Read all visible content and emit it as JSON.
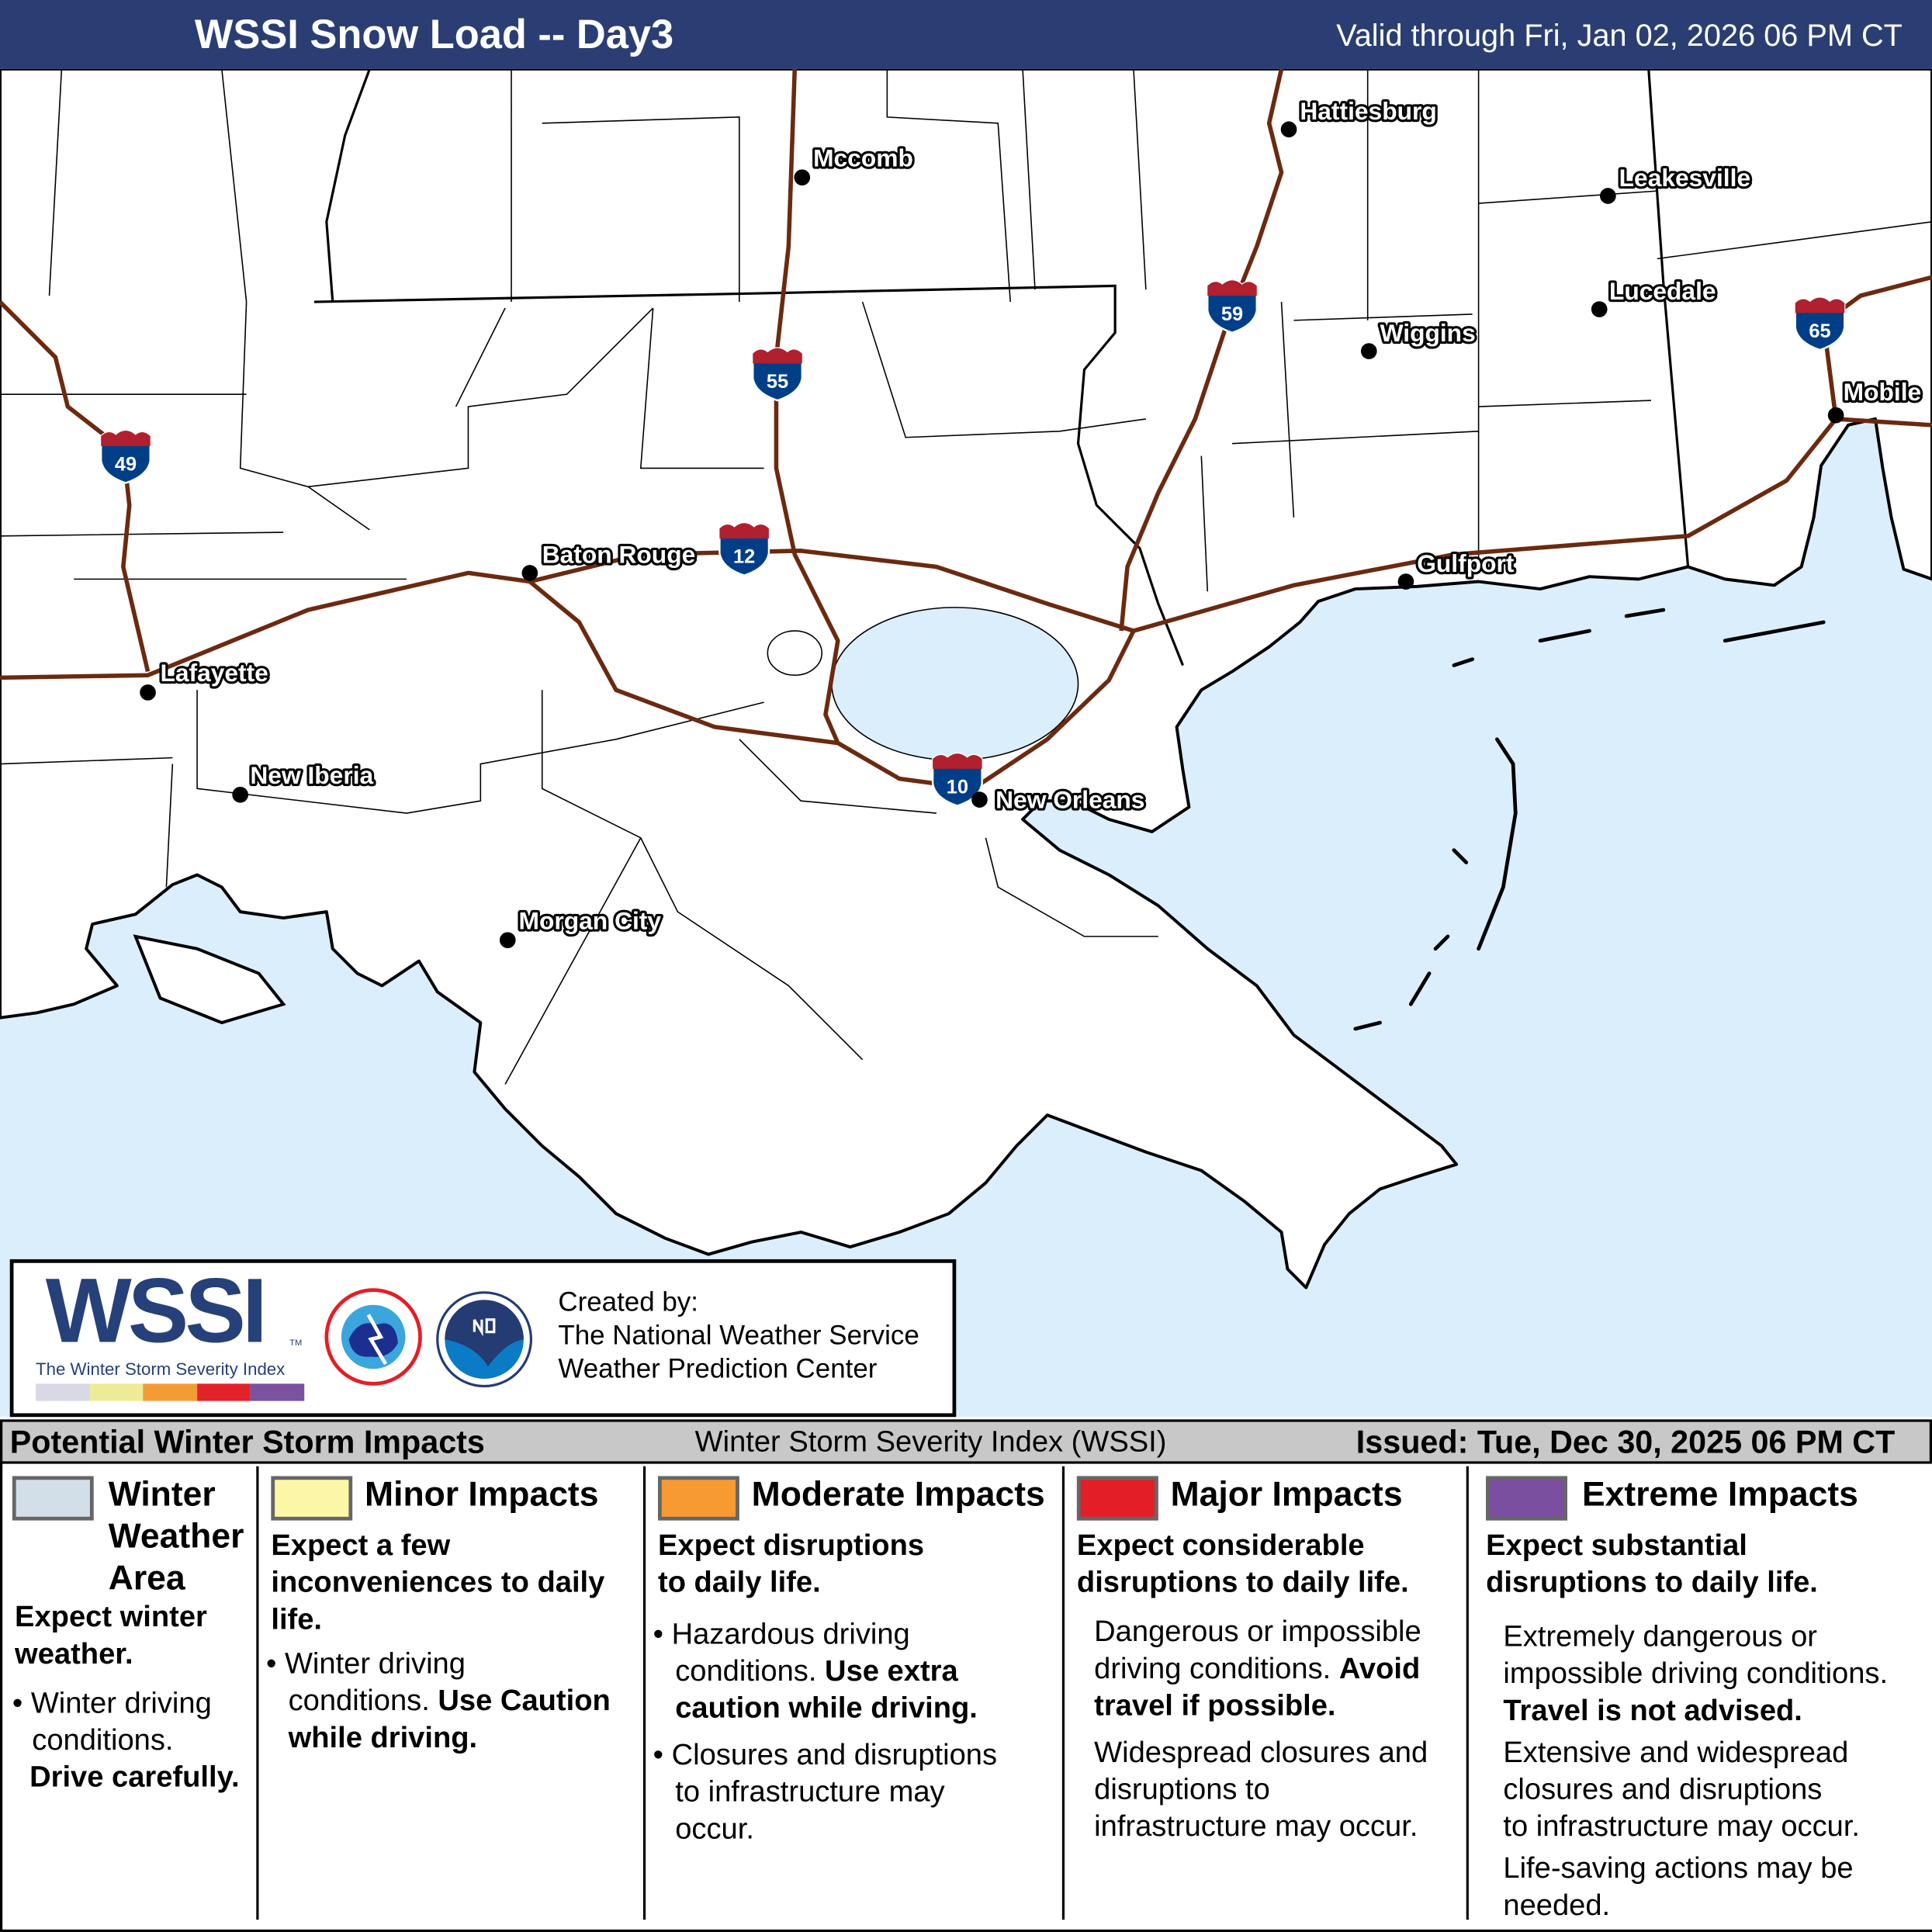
{
  "header": {
    "title": "WSSI Snow Load -- Day3",
    "valid": "Valid through Fri, Jan 02, 2026 06 PM CT",
    "bg_color": "#2b3e73"
  },
  "map": {
    "water_color": "#dbeefc",
    "land_color": "#ffffff",
    "highway_color": "#6b2a10",
    "cities": [
      {
        "name": "Hattiesburg"
      },
      {
        "name": "Mccomb"
      },
      {
        "name": "Leakesville"
      },
      {
        "name": "Lucedale"
      },
      {
        "name": "Wiggins"
      },
      {
        "name": "Mobile"
      },
      {
        "name": "Baton Rouge"
      },
      {
        "name": "Gulfport"
      },
      {
        "name": "Lafayette"
      },
      {
        "name": "New Iberia"
      },
      {
        "name": "New Orleans"
      },
      {
        "name": "Morgan City"
      }
    ],
    "interstates": [
      "49",
      "55",
      "12",
      "59",
      "10",
      "65"
    ]
  },
  "logo": {
    "wssi": "WSSI",
    "tm": "TM",
    "subtitle": "The Winter Storm Severity Index",
    "scale_colors": [
      "#d9d9e6",
      "#edeb98",
      "#f59b36",
      "#e2232a",
      "#7b52a0"
    ],
    "created_by": "Created by:",
    "org1": "The National Weather Service",
    "org2": "Weather Prediction Center"
  },
  "legend_bar": {
    "left": "Potential Winter Storm Impacts",
    "middle": "Winter Storm Severity Index (WSSI)",
    "right": "Issued: Tue, Dec 30, 2025 06 PM CT"
  },
  "categories": [
    {
      "color": "#d3dfe8",
      "title_1": "Winter",
      "title_2": "Weather",
      "title_3": "Area",
      "summary_1": "Expect winter",
      "summary_2": "weather.",
      "bullet_1": "Winter driving",
      "bullet_2": "conditions.",
      "bullet_bold": "Drive carefully."
    },
    {
      "color": "#fbf7a6",
      "title": "Minor Impacts",
      "summary_1": "Expect a few",
      "summary_2": "inconveniences to daily",
      "summary_3": "life.",
      "bullet_1": "Winter driving",
      "bullet_2": "conditions.",
      "bullet_bold_1": "Use Caution",
      "bullet_bold_2": "while driving."
    },
    {
      "color": "#f79a32",
      "title": "Moderate Impacts",
      "summary_1": "Expect disruptions",
      "summary_2": "to daily life.",
      "bullet_1": "Hazardous driving",
      "bullet_2": "conditions.",
      "bullet_bold_1": "Use extra",
      "bullet_bold_2": "caution while driving.",
      "bullet2_1": "Closures and disruptions",
      "bullet2_2": "to infrastructure may",
      "bullet2_3": "occur."
    },
    {
      "color": "#e31e26",
      "title": "Major Impacts",
      "summary_1": "Expect considerable",
      "summary_2": "disruptions to daily life.",
      "text_1": "Dangerous or impossible",
      "text_2": "driving conditions.",
      "text_bold_1": "Avoid",
      "text_bold_2": "travel if possible.",
      "text2_1": "Widespread closures and",
      "text2_2": "disruptions to",
      "text2_3": "infrastructure may occur."
    },
    {
      "color": "#7a4fa0",
      "title": "Extreme Impacts",
      "summary_1": "Expect substantial",
      "summary_2": "disruptions to daily life.",
      "text_1": "Extremely dangerous or",
      "text_2": "impossible driving conditions.",
      "text_bold": "Travel is not advised.",
      "text2_1": "Extensive and widespread",
      "text2_2": "closures and disruptions",
      "text2_3": "to infrastructure may occur.",
      "text3_1": "Life-saving actions may be",
      "text3_2": "needed."
    }
  ]
}
